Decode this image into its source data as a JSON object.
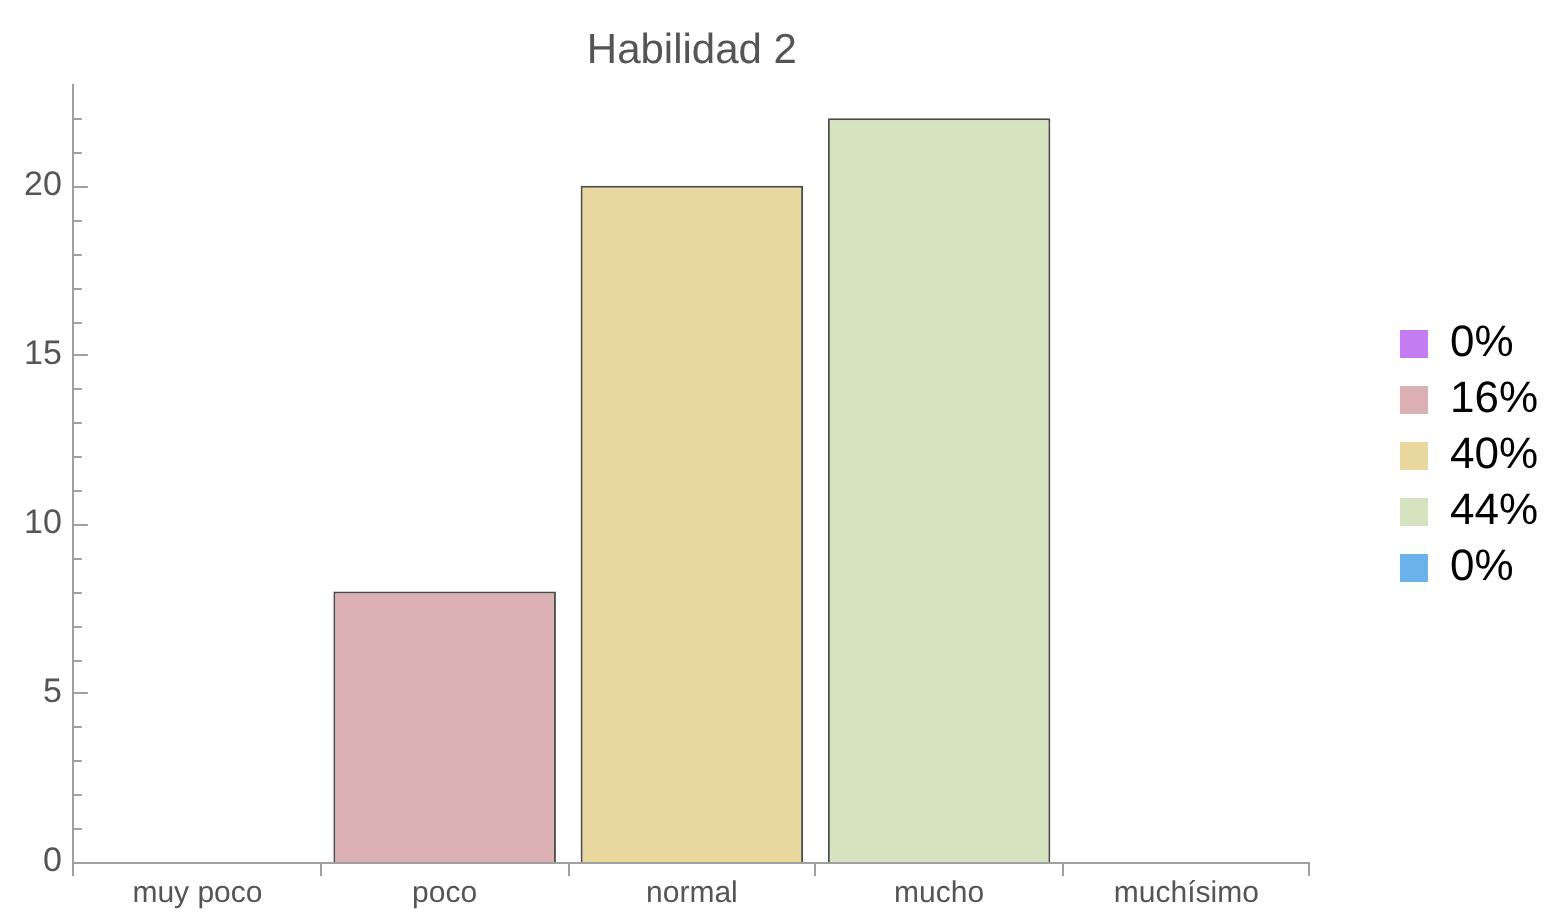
{
  "chart_data": {
    "type": "bar",
    "title": "Habilidad 2",
    "categories": [
      "muy poco",
      "poco",
      "normal",
      "mucho",
      "muchísimo"
    ],
    "series": [
      {
        "name": "0%",
        "color": "#c47cf2",
        "values": [
          0,
          null,
          null,
          null,
          null
        ]
      },
      {
        "name": "16%",
        "color": "#dbb0b2",
        "values": [
          null,
          8,
          null,
          null,
          null
        ]
      },
      {
        "name": "40%",
        "color": "#e8d79e",
        "values": [
          null,
          null,
          20,
          null,
          null
        ]
      },
      {
        "name": "44%",
        "color": "#d5e3c0",
        "values": [
          null,
          null,
          null,
          22,
          null
        ]
      },
      {
        "name": "0%",
        "color": "#6cb2ea",
        "values": [
          null,
          null,
          null,
          null,
          0
        ]
      }
    ],
    "ylim": [
      0,
      23
    ],
    "yticks": [
      0,
      {
        "value": 1,
        "label": null
      },
      {
        "value": 2,
        "label": null
      },
      {
        "value": 3,
        "label": null
      },
      {
        "value": 4,
        "label": null
      },
      5,
      {
        "value": 6,
        "label": null
      },
      {
        "value": 7,
        "label": null
      },
      {
        "value": 8,
        "label": null
      },
      {
        "value": 9,
        "label": null
      },
      10,
      {
        "value": 11,
        "label": null
      },
      {
        "value": 12,
        "label": null
      },
      {
        "value": 13,
        "label": null
      },
      {
        "value": 14,
        "label": null
      },
      15,
      {
        "value": 16,
        "label": null
      },
      {
        "value": 17,
        "label": null
      },
      {
        "value": 18,
        "label": null
      },
      {
        "value": 19,
        "label": null
      },
      20,
      {
        "value": 21,
        "label": null
      },
      {
        "value": 22,
        "label": null
      }
    ],
    "grid": false,
    "legend": "right"
  }
}
